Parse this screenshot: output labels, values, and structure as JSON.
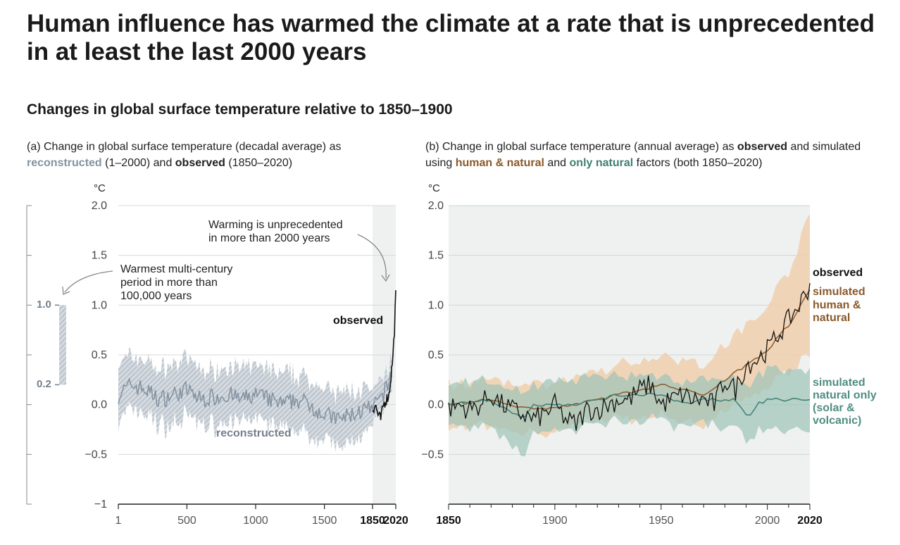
{
  "title": "Human influence has warmed the climate at a rate that is unprecedented in at least the last 2000 years",
  "subtitle": "Changes in global surface temperature relative to 1850–1900",
  "panel_a": {
    "caption_prefix": "(a) Change in global surface temperature (decadal average) as ",
    "caption_reconstructed": "reconstructed",
    "caption_middle": " (1–2000) and ",
    "caption_observed": "observed",
    "caption_suffix": " (1850–2020)",
    "unit": "°C",
    "annotation_warming": [
      "Warming is unprecedented",
      "in more than 2000 years"
    ],
    "annotation_warmest": [
      "Warmest multi-century",
      "period in more than",
      "100,000 years"
    ],
    "label_observed": "observed",
    "label_reconstructed": "reconstructed",
    "warmest_range_top": "1.0",
    "warmest_range_bottom": "0.2"
  },
  "panel_b": {
    "caption_prefix": "(b) Change in global surface temperature (annual average) as ",
    "caption_observed": "observed",
    "caption_line2_prefix": " and simulated using ",
    "caption_human": "human & natural",
    "caption_and": " and ",
    "caption_natural": "only natural",
    "caption_suffix": " factors (both 1850–2020)",
    "unit": "°C",
    "label_observed": "observed",
    "label_human": [
      "simulated",
      "human &",
      "natural"
    ],
    "label_natural": [
      "simulated",
      "natural only",
      "(solar &",
      "volcanic)"
    ]
  },
  "colors": {
    "reconstructed": "#8593a1",
    "reconstructed_band": "#c9d0d8",
    "observed": "#111111",
    "human_natural": "#8a5a2b",
    "human_band": "#f0cfad",
    "natural_only": "#3f7f73",
    "natural_band": "#9cc3b8",
    "shade": "#eef1ef"
  },
  "chart_data": [
    {
      "type": "line",
      "panel": "a",
      "ylim": [
        -1,
        2
      ],
      "yticks": [
        "2.0",
        "1.5",
        "1.0",
        "0.5",
        "0.0",
        "−0.5",
        "−1"
      ],
      "xticks": [
        "1",
        "500",
        "1000",
        "1500",
        "1850",
        "2020"
      ],
      "series": [
        {
          "name": "reconstructed",
          "x": [
            1,
            100,
            200,
            300,
            400,
            500,
            600,
            700,
            800,
            900,
            1000,
            1100,
            1200,
            1300,
            1400,
            1500,
            1600,
            1700,
            1800,
            1850,
            1900,
            1950,
            2000
          ],
          "y": [
            0.1,
            0.2,
            0.15,
            0.05,
            0.1,
            0.15,
            0.05,
            0.08,
            0.1,
            0.05,
            0.1,
            0.05,
            0.0,
            0.05,
            0.0,
            -0.1,
            -0.15,
            -0.1,
            -0.05,
            -0.05,
            0.05,
            0.15,
            0.35
          ],
          "upper": [
            0.4,
            0.5,
            0.45,
            0.35,
            0.4,
            0.45,
            0.35,
            0.35,
            0.4,
            0.35,
            0.4,
            0.35,
            0.3,
            0.3,
            0.25,
            0.15,
            0.1,
            0.15,
            0.15,
            0.1,
            0.2,
            0.3,
            0.5
          ],
          "lower": [
            -0.15,
            -0.05,
            -0.1,
            -0.2,
            -0.2,
            -0.1,
            -0.2,
            -0.2,
            -0.15,
            -0.2,
            -0.15,
            -0.2,
            -0.25,
            -0.25,
            -0.3,
            -0.35,
            -0.45,
            -0.35,
            -0.3,
            -0.2,
            -0.1,
            0.0,
            0.2
          ]
        },
        {
          "name": "observed",
          "x": [
            1850,
            1870,
            1890,
            1910,
            1930,
            1950,
            1970,
            1990,
            2000,
            2010,
            2020
          ],
          "y": [
            -0.05,
            0.0,
            -0.1,
            -0.15,
            0.0,
            0.05,
            0.1,
            0.35,
            0.5,
            0.75,
            1.1
          ]
        }
      ],
      "warmest_period_range": [
        0.2,
        1.0
      ]
    },
    {
      "type": "line",
      "panel": "b",
      "xlim": [
        1850,
        2020
      ],
      "ylim": [
        -1,
        2
      ],
      "yticks": [
        "2.0",
        "1.5",
        "1.0",
        "0.5",
        "0.0",
        "−0.5"
      ],
      "xticks": [
        "1850",
        "1900",
        "1950",
        "2000",
        "2020"
      ],
      "series": [
        {
          "name": "observed",
          "x": [
            1850,
            1855,
            1860,
            1865,
            1870,
            1875,
            1880,
            1885,
            1890,
            1895,
            1900,
            1905,
            1910,
            1915,
            1920,
            1925,
            1930,
            1935,
            1940,
            1945,
            1950,
            1955,
            1960,
            1965,
            1970,
            1975,
            1980,
            1985,
            1990,
            1995,
            2000,
            2005,
            2010,
            2015,
            2020
          ],
          "y": [
            -0.05,
            0.0,
            -0.05,
            0.0,
            0.1,
            0.0,
            -0.05,
            -0.1,
            -0.15,
            -0.1,
            0.0,
            -0.15,
            -0.2,
            -0.05,
            -0.05,
            0.0,
            0.05,
            0.05,
            0.15,
            0.2,
            0.0,
            0.05,
            0.1,
            0.05,
            0.05,
            0.0,
            0.25,
            0.15,
            0.4,
            0.45,
            0.55,
            0.7,
            0.85,
            1.0,
            1.2
          ]
        },
        {
          "name": "simulated human & natural",
          "x": [
            1850,
            1870,
            1890,
            1910,
            1930,
            1950,
            1960,
            1970,
            1980,
            1990,
            2000,
            2010,
            2020
          ],
          "y": [
            0.0,
            0.05,
            -0.05,
            0.0,
            0.1,
            0.2,
            0.15,
            0.1,
            0.25,
            0.4,
            0.55,
            0.8,
            1.15
          ],
          "upper": [
            0.2,
            0.25,
            0.2,
            0.25,
            0.4,
            0.5,
            0.45,
            0.4,
            0.6,
            0.8,
            1.0,
            1.35,
            1.9
          ],
          "lower": [
            -0.25,
            -0.2,
            -0.3,
            -0.2,
            -0.15,
            -0.1,
            -0.15,
            -0.2,
            -0.05,
            0.05,
            0.2,
            0.35,
            0.5
          ]
        },
        {
          "name": "simulated natural only (solar & volcanic)",
          "x": [
            1850,
            1870,
            1885,
            1890,
            1910,
            1930,
            1950,
            1963,
            1970,
            1985,
            1991,
            1995,
            2000,
            2010,
            2020
          ],
          "y": [
            0.0,
            0.05,
            -0.15,
            0.0,
            0.0,
            0.1,
            0.1,
            0.0,
            0.05,
            0.05,
            -0.15,
            0.0,
            0.05,
            0.05,
            0.05
          ],
          "upper": [
            0.2,
            0.25,
            0.1,
            0.2,
            0.25,
            0.3,
            0.3,
            0.2,
            0.25,
            0.3,
            0.1,
            0.3,
            0.35,
            0.35,
            0.35
          ],
          "lower": [
            -0.2,
            -0.2,
            -0.55,
            -0.25,
            -0.25,
            -0.15,
            -0.15,
            -0.25,
            -0.2,
            -0.2,
            -0.45,
            -0.25,
            -0.25,
            -0.25,
            -0.25
          ]
        }
      ]
    }
  ]
}
